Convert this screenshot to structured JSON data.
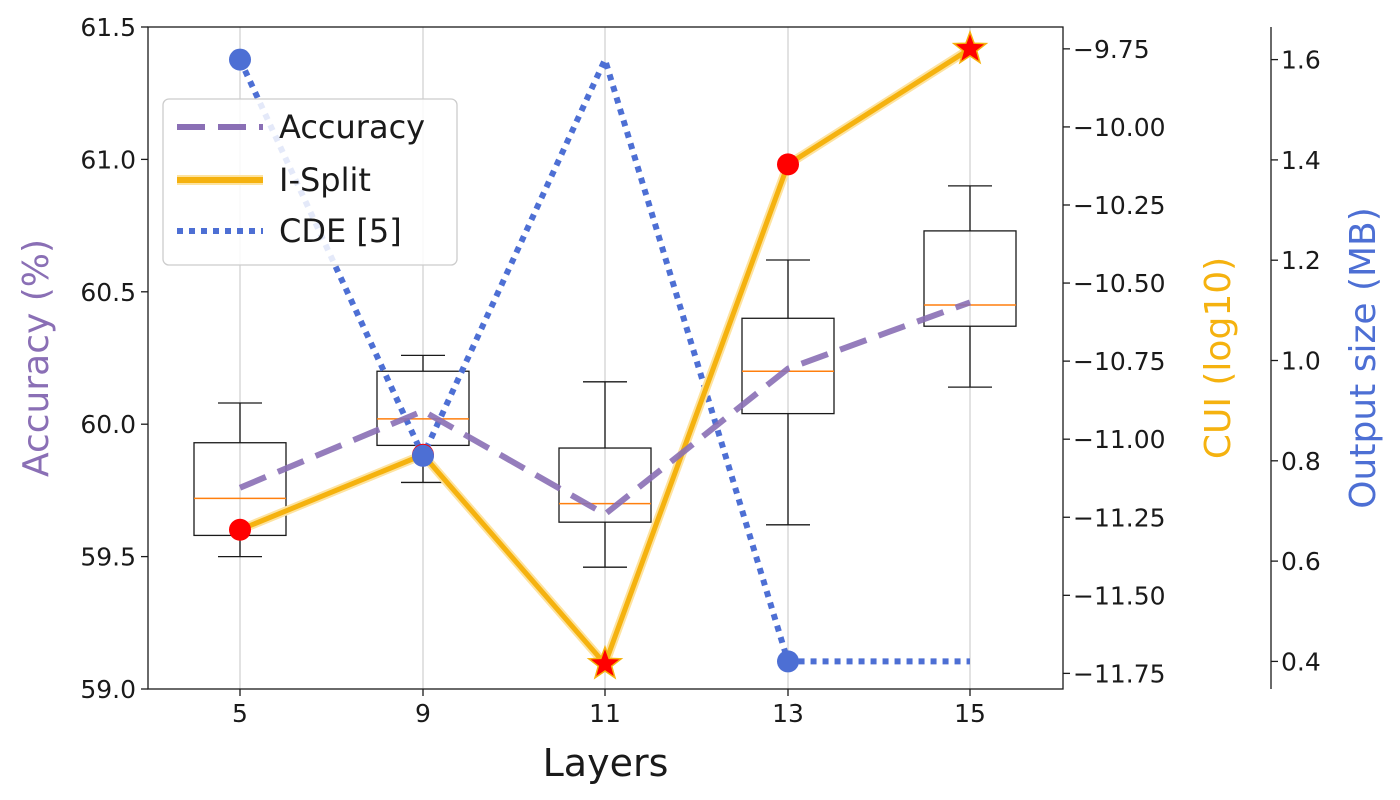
{
  "chart_data": {
    "type": "line",
    "categories": [
      "5",
      "9",
      "11",
      "13",
      "15"
    ],
    "xlabel": "Layers",
    "left_axis": {
      "label": "Accuracy (%)",
      "ylim": [
        59.0,
        61.5
      ],
      "ticks": [
        "59.0",
        "59.5",
        "60.0",
        "60.5",
        "61.0",
        "61.5"
      ]
    },
    "right_axis_1": {
      "label": "CUI (log10)",
      "ylim": [
        -11.8,
        -9.68
      ],
      "ticks": [
        "−11.75",
        "−11.50",
        "−11.25",
        "−11.00",
        "−10.75",
        "−10.50",
        "−10.25",
        "−10.00",
        "−9.75"
      ]
    },
    "right_axis_2": {
      "label": "Output size (MB)",
      "ylim": [
        0.345,
        1.665
      ],
      "ticks": [
        "0.4",
        "0.6",
        "0.8",
        "1.0",
        "1.2",
        "1.4",
        "1.6"
      ]
    },
    "series": [
      {
        "name": "Accuracy",
        "axis": "left",
        "style": "dashed",
        "color": "#8a6fb5",
        "values": [
          59.76,
          60.05,
          59.66,
          60.21,
          60.46
        ]
      },
      {
        "name": "I-Split",
        "axis": "right_1",
        "style": "solid",
        "color": "#f5b20f",
        "values": [
          -11.29,
          -11.05,
          -11.72,
          -10.12,
          -9.75
        ],
        "markers": [
          "circle",
          "circle",
          "star",
          "circle",
          "star"
        ],
        "marker_color": "#ff0000"
      },
      {
        "name": "CDE [5]",
        "axis": "right_2",
        "style": "dotted",
        "color": "#4d6fd4",
        "values": [
          1.6,
          0.81,
          1.6,
          0.4,
          0.4
        ],
        "markers": [
          "circle",
          "circle",
          "none",
          "circle",
          "none"
        ]
      }
    ],
    "boxplots": [
      {
        "x": "5",
        "whisker_low": 59.5,
        "q1": 59.58,
        "median": 59.72,
        "q3": 59.93,
        "whisker_high": 60.08
      },
      {
        "x": "9",
        "whisker_low": 59.78,
        "q1": 59.92,
        "median": 60.02,
        "q3": 60.2,
        "whisker_high": 60.26
      },
      {
        "x": "11",
        "whisker_low": 59.46,
        "q1": 59.63,
        "median": 59.7,
        "q3": 59.91,
        "whisker_high": 60.16
      },
      {
        "x": "13",
        "whisker_low": 59.62,
        "q1": 60.04,
        "median": 60.2,
        "q3": 60.4,
        "whisker_high": 60.62
      },
      {
        "x": "15",
        "whisker_low": 60.14,
        "q1": 60.37,
        "median": 60.45,
        "q3": 60.73,
        "whisker_high": 60.9
      }
    ],
    "box_median_color": "#ff7f0e",
    "grid": "vertical",
    "legend_placement": "top-left"
  }
}
